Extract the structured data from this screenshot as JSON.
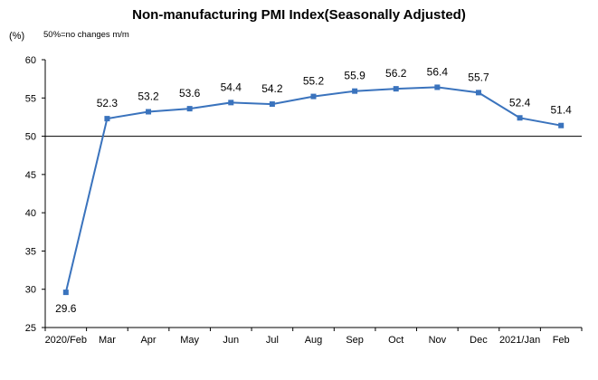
{
  "title": "Non-manufacturing PMI Index(Seasonally Adjusted)",
  "unit_label": "(%)",
  "note": "50%=no changes  m/m",
  "chart_data": {
    "type": "line",
    "title": "Non-manufacturing PMI Index(Seasonally Adjusted)",
    "xlabel": "",
    "ylabel": "(%)",
    "categories": [
      "2020/Feb",
      "Mar",
      "Apr",
      "May",
      "Jun",
      "Jul",
      "Aug",
      "Sep",
      "Oct",
      "Nov",
      "Dec",
      "2021/Jan",
      "Feb"
    ],
    "series": [
      {
        "values": [
          29.6,
          52.3,
          53.2,
          53.6,
          54.4,
          54.2,
          55.2,
          55.9,
          56.2,
          56.4,
          55.7,
          52.4,
          51.4
        ]
      }
    ],
    "data_labels": [
      "29.6",
      "52.3",
      "53.2",
      "53.6",
      "54.4",
      "54.2",
      "55.2",
      "55.9",
      "56.2",
      "56.4",
      "55.7",
      "52.4",
      "51.4"
    ],
    "yticks": [
      "25",
      "30",
      "35",
      "40",
      "45",
      "50",
      "55",
      "60"
    ],
    "ylim": [
      25,
      60
    ],
    "reference_line": 50,
    "grid": false,
    "legend": "none",
    "colors": {
      "line": "#3a73bd",
      "marker": "#3a73bd",
      "axis": "#000000"
    }
  }
}
